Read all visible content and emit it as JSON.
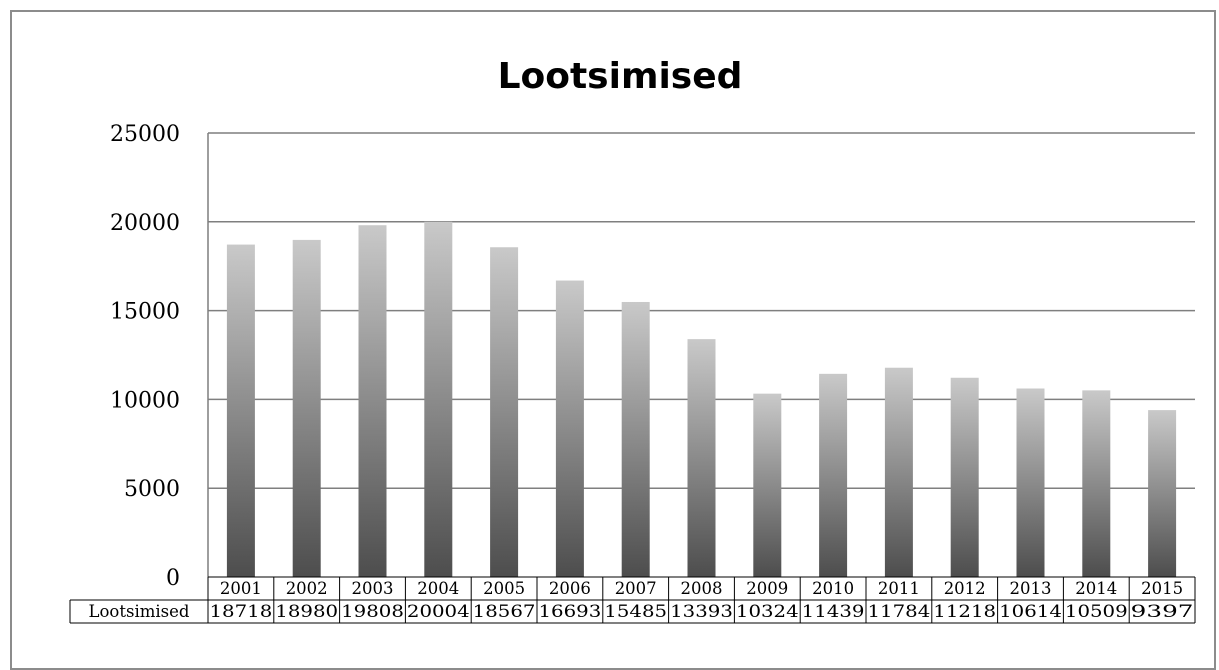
{
  "chart_data": {
    "type": "bar",
    "title": "Lootsimised",
    "categories": [
      "2001",
      "2002",
      "2003",
      "2004",
      "2005",
      "2006",
      "2007",
      "2008",
      "2009",
      "2010",
      "2011",
      "2012",
      "2013",
      "2014",
      "2015"
    ],
    "series": [
      {
        "name": "Lootsimised",
        "values": [
          18718,
          18980,
          19808,
          20004,
          18567,
          16693,
          15485,
          13393,
          10324,
          11439,
          11784,
          11218,
          10614,
          10509,
          9397
        ]
      }
    ],
    "ylim": [
      0,
      25000
    ],
    "yticks": [
      0,
      5000,
      10000,
      15000,
      20000,
      25000
    ],
    "grid": true,
    "data_table": true,
    "colors": {
      "bar_top": "#c9c9c9",
      "bar_bottom": "#4d4d4d",
      "grid": "#7f7f7f",
      "frame": "#8c8c8c"
    }
  }
}
